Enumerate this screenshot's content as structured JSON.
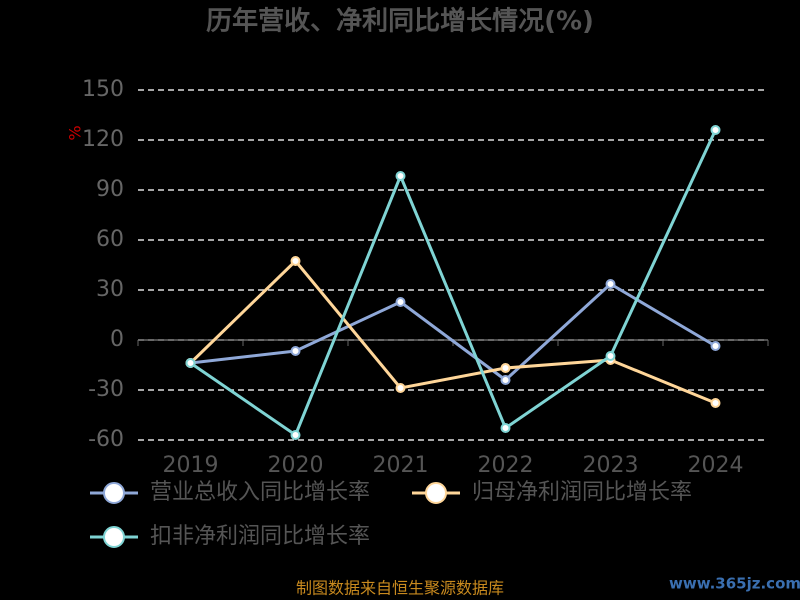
{
  "chart_data": {
    "type": "line",
    "title": "历年营收、净利同比增长情况(%)",
    "y_label": "%",
    "categories": [
      "2019",
      "2020",
      "2021",
      "2022",
      "2023",
      "2024"
    ],
    "series": [
      {
        "name": "营业总收入同比增长率",
        "color": "#8fa8d8",
        "values": [
          -13.8,
          -6.6,
          22.8,
          -24,
          33.6,
          -3.6
        ]
      },
      {
        "name": "归母净利润同比增长率",
        "color": "#ffd699",
        "values": [
          -13.8,
          47.4,
          -28.8,
          -16.8,
          -12,
          -37.8
        ]
      },
      {
        "name": "扣非净利润同比增长率",
        "color": "#7fd4d4",
        "values": [
          -13.8,
          -57,
          98.4,
          -52.8,
          -9.6,
          126
        ]
      }
    ],
    "ylim": [
      -60,
      150
    ],
    "yticks": [
      -60,
      -30,
      0,
      30,
      60,
      90,
      120,
      150
    ],
    "grid": true,
    "legend": "bottom",
    "source": "制图数据来自恒生聚源数据库",
    "watermark": "www.365jz.com"
  }
}
